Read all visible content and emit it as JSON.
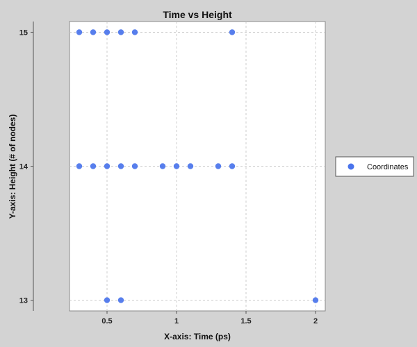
{
  "chart_data": {
    "type": "scatter",
    "title": "Time vs Height",
    "xlabel": "X-axis: Time (ps)",
    "ylabel": "Y-axis: Height (# of nodes)",
    "xlim": [
      0.23,
      2.07
    ],
    "ylim": [
      12.92,
      15.08
    ],
    "xticks": [
      0.5,
      1,
      1.5,
      2
    ],
    "xtick_labels": [
      "0.5",
      "1",
      "1.5",
      "2"
    ],
    "yticks": [
      13,
      14,
      15
    ],
    "ytick_labels": [
      "13",
      "14",
      "15"
    ],
    "grid": true,
    "legend_position": "right",
    "series": [
      {
        "name": "Coordinates",
        "color": "#4a74ec",
        "points": [
          {
            "x": 0.3,
            "y": 15
          },
          {
            "x": 0.4,
            "y": 15
          },
          {
            "x": 0.5,
            "y": 15
          },
          {
            "x": 0.6,
            "y": 15
          },
          {
            "x": 0.7,
            "y": 15
          },
          {
            "x": 1.4,
            "y": 15
          },
          {
            "x": 0.3,
            "y": 14
          },
          {
            "x": 0.4,
            "y": 14
          },
          {
            "x": 0.5,
            "y": 14
          },
          {
            "x": 0.6,
            "y": 14
          },
          {
            "x": 0.7,
            "y": 14
          },
          {
            "x": 0.9,
            "y": 14
          },
          {
            "x": 1.0,
            "y": 14
          },
          {
            "x": 1.1,
            "y": 14
          },
          {
            "x": 1.3,
            "y": 14
          },
          {
            "x": 1.4,
            "y": 14
          },
          {
            "x": 0.5,
            "y": 13
          },
          {
            "x": 0.6,
            "y": 13
          },
          {
            "x": 2.0,
            "y": 13
          }
        ]
      }
    ]
  }
}
